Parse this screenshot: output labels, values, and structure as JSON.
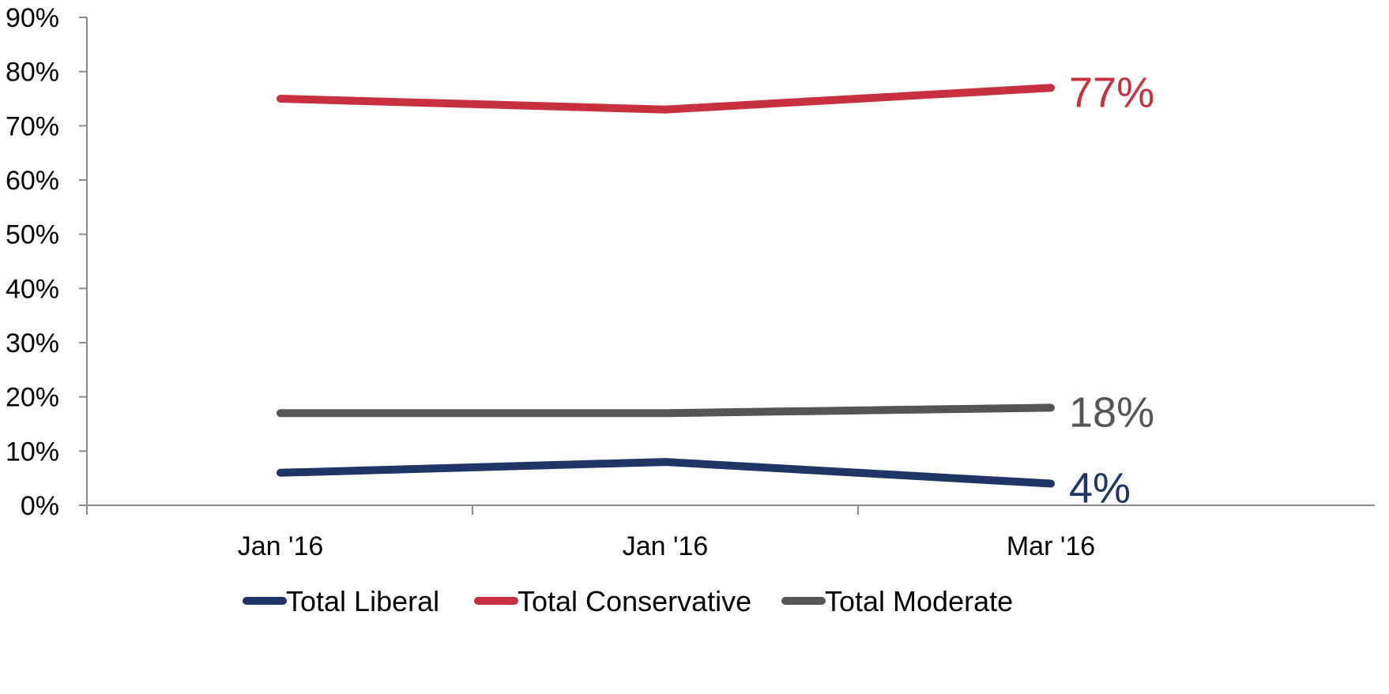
{
  "chart_data": {
    "type": "line",
    "title": "",
    "xlabel": "",
    "ylabel": "",
    "categories": [
      "Jan '16",
      "Jan '16",
      "Mar '16"
    ],
    "y_ticks": [
      "0%",
      "10%",
      "20%",
      "30%",
      "40%",
      "50%",
      "60%",
      "70%",
      "80%",
      "90%"
    ],
    "ylim": [
      0,
      90
    ],
    "grid": false,
    "legend_position": "bottom",
    "series": [
      {
        "name": "Total Liberal",
        "values": [
          6,
          8,
          4
        ],
        "color": "#1f3566",
        "end_label": "4%"
      },
      {
        "name": "Total Conservative",
        "values": [
          75,
          73,
          77
        ],
        "color": "#c8303f",
        "end_label": "77%"
      },
      {
        "name": "Total Moderate",
        "values": [
          17,
          17,
          18
        ],
        "color": "#555555",
        "end_label": "18%"
      }
    ]
  }
}
